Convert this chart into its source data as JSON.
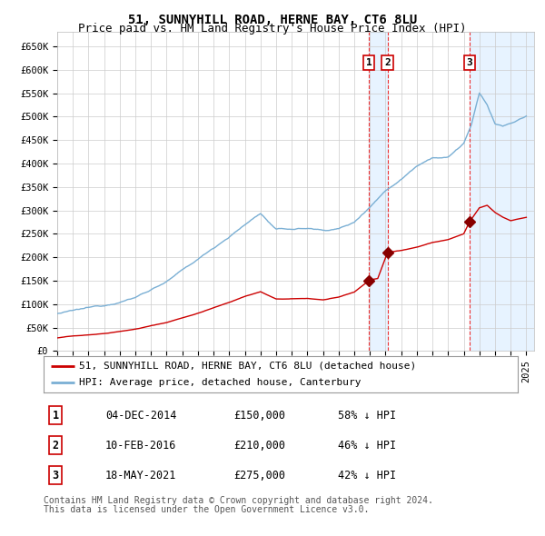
{
  "title": "51, SUNNYHILL ROAD, HERNE BAY, CT6 8LU",
  "subtitle": "Price paid vs. HM Land Registry's House Price Index (HPI)",
  "xlim_start": 1995.0,
  "xlim_end": 2025.5,
  "ylim": [
    0,
    680000
  ],
  "yticks": [
    0,
    50000,
    100000,
    150000,
    200000,
    250000,
    300000,
    350000,
    400000,
    450000,
    500000,
    550000,
    600000,
    650000
  ],
  "ytick_labels": [
    "£0",
    "£50K",
    "£100K",
    "£150K",
    "£200K",
    "£250K",
    "£300K",
    "£350K",
    "£400K",
    "£450K",
    "£500K",
    "£550K",
    "£600K",
    "£650K"
  ],
  "sale_dates_num": [
    2014.92,
    2016.12,
    2021.37
  ],
  "sale_prices": [
    150000,
    210000,
    275000
  ],
  "sale_labels": [
    "1",
    "2",
    "3"
  ],
  "sale_date_strs": [
    "04-DEC-2014",
    "10-FEB-2016",
    "18-MAY-2021"
  ],
  "sale_price_strs": [
    "£150,000",
    "£210,000",
    "£275,000"
  ],
  "sale_pct_strs": [
    "58% ↓ HPI",
    "46% ↓ HPI",
    "42% ↓ HPI"
  ],
  "background_color": "#ffffff",
  "plot_bg_color": "#ffffff",
  "grid_color": "#cccccc",
  "hpi_line_color": "#7aafd4",
  "shade_color": "#ddeeff",
  "price_line_color": "#cc0000",
  "price_marker_color": "#880000",
  "vline_color": "#ee3333",
  "legend_label_red": "51, SUNNYHILL ROAD, HERNE BAY, CT6 8LU (detached house)",
  "legend_label_blue": "HPI: Average price, detached house, Canterbury",
  "footer1": "Contains HM Land Registry data © Crown copyright and database right 2024.",
  "footer2": "This data is licensed under the Open Government Licence v3.0.",
  "title_fontsize": 10,
  "subtitle_fontsize": 9,
  "tick_fontsize": 7.5,
  "legend_fontsize": 8,
  "table_fontsize": 8.5,
  "footer_fontsize": 7
}
